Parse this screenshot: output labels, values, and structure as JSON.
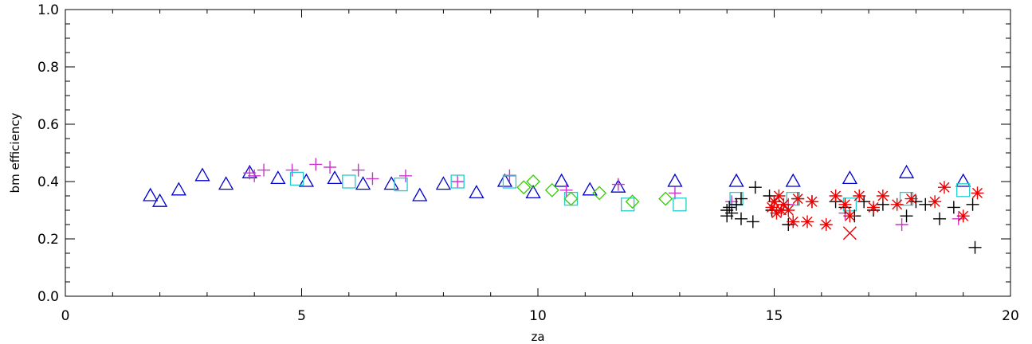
{
  "chart_data": {
    "type": "scatter",
    "title": "",
    "xlabel": "za",
    "ylabel": "bm efficiency",
    "xlim": [
      0,
      20
    ],
    "ylim": [
      0.0,
      1.0
    ],
    "xticks": [
      0,
      5,
      10,
      15,
      20
    ],
    "xtick_labels": [
      "0",
      "5",
      "10",
      "15",
      "20"
    ],
    "yticks": [
      0.0,
      0.2,
      0.4,
      0.6,
      0.8,
      1.0
    ],
    "ytick_labels": [
      "0.0",
      "0.2",
      "0.4",
      "0.6",
      "0.8",
      "1.0"
    ],
    "grid": false,
    "legend": "none",
    "series": [
      {
        "marker": "triangle",
        "color": "#0000cc",
        "points": [
          [
            1.8,
            0.35
          ],
          [
            2.0,
            0.33
          ],
          [
            2.4,
            0.37
          ],
          [
            2.9,
            0.42
          ],
          [
            3.4,
            0.39
          ],
          [
            3.9,
            0.43
          ],
          [
            4.5,
            0.41
          ],
          [
            5.1,
            0.4
          ],
          [
            5.7,
            0.41
          ],
          [
            6.3,
            0.39
          ],
          [
            6.9,
            0.39
          ],
          [
            7.5,
            0.35
          ],
          [
            8.0,
            0.39
          ],
          [
            8.7,
            0.36
          ],
          [
            9.3,
            0.4
          ],
          [
            9.9,
            0.36
          ],
          [
            10.5,
            0.4
          ],
          [
            11.1,
            0.37
          ],
          [
            11.7,
            0.38
          ],
          [
            12.9,
            0.4
          ],
          [
            14.2,
            0.4
          ],
          [
            15.4,
            0.4
          ],
          [
            16.6,
            0.41
          ],
          [
            17.8,
            0.43
          ],
          [
            19.0,
            0.4
          ]
        ]
      },
      {
        "marker": "plus",
        "color": "#cc33cc",
        "points": [
          [
            3.9,
            0.43
          ],
          [
            4.0,
            0.42
          ],
          [
            4.2,
            0.44
          ],
          [
            4.8,
            0.44
          ],
          [
            5.3,
            0.46
          ],
          [
            5.6,
            0.45
          ],
          [
            6.2,
            0.44
          ],
          [
            6.5,
            0.41
          ],
          [
            7.2,
            0.42
          ],
          [
            8.3,
            0.4
          ],
          [
            9.4,
            0.42
          ],
          [
            10.6,
            0.37
          ],
          [
            11.7,
            0.39
          ],
          [
            12.9,
            0.36
          ],
          [
            14.1,
            0.33
          ],
          [
            15.3,
            0.32
          ],
          [
            16.5,
            0.29
          ],
          [
            17.7,
            0.25
          ],
          [
            18.9,
            0.27
          ]
        ]
      },
      {
        "marker": "square",
        "color": "#22cccc",
        "points": [
          [
            4.9,
            0.41
          ],
          [
            6.0,
            0.4
          ],
          [
            7.1,
            0.39
          ],
          [
            8.3,
            0.4
          ],
          [
            9.4,
            0.4
          ],
          [
            10.7,
            0.34
          ],
          [
            11.9,
            0.32
          ],
          [
            13.0,
            0.32
          ],
          [
            14.2,
            0.34
          ],
          [
            15.4,
            0.34
          ],
          [
            16.6,
            0.32
          ],
          [
            17.8,
            0.34
          ],
          [
            19.0,
            0.37
          ]
        ]
      },
      {
        "marker": "diamond",
        "color": "#33cc00",
        "points": [
          [
            9.7,
            0.38
          ],
          [
            9.9,
            0.4
          ],
          [
            10.3,
            0.37
          ],
          [
            10.7,
            0.34
          ],
          [
            11.3,
            0.36
          ],
          [
            12.0,
            0.33
          ],
          [
            12.7,
            0.34
          ]
        ]
      },
      {
        "marker": "plus",
        "color": "#000000",
        "points": [
          [
            14.0,
            0.3
          ],
          [
            14.0,
            0.28
          ],
          [
            14.05,
            0.31
          ],
          [
            14.1,
            0.29
          ],
          [
            14.2,
            0.32
          ],
          [
            14.3,
            0.27
          ],
          [
            14.3,
            0.34
          ],
          [
            14.55,
            0.26
          ],
          [
            14.6,
            0.38
          ],
          [
            14.9,
            0.35
          ],
          [
            14.95,
            0.3
          ],
          [
            15.0,
            0.33
          ],
          [
            15.3,
            0.25
          ],
          [
            15.5,
            0.34
          ],
          [
            15.8,
            0.33
          ],
          [
            16.3,
            0.33
          ],
          [
            16.5,
            0.31
          ],
          [
            16.7,
            0.28
          ],
          [
            16.9,
            0.33
          ],
          [
            17.1,
            0.3
          ],
          [
            17.3,
            0.32
          ],
          [
            17.8,
            0.28
          ],
          [
            18.0,
            0.33
          ],
          [
            18.2,
            0.32
          ],
          [
            18.5,
            0.27
          ],
          [
            18.8,
            0.31
          ],
          [
            19.2,
            0.32
          ],
          [
            19.25,
            0.17
          ]
        ]
      },
      {
        "marker": "asterisk",
        "color": "#ee0000",
        "points": [
          [
            14.95,
            0.31
          ],
          [
            15.0,
            0.33
          ],
          [
            15.05,
            0.29
          ],
          [
            15.1,
            0.35
          ],
          [
            15.15,
            0.3
          ],
          [
            15.2,
            0.32
          ],
          [
            15.3,
            0.3
          ],
          [
            15.4,
            0.26
          ],
          [
            15.5,
            0.34
          ],
          [
            15.7,
            0.26
          ],
          [
            15.8,
            0.33
          ],
          [
            16.1,
            0.25
          ],
          [
            16.3,
            0.35
          ],
          [
            16.5,
            0.32
          ],
          [
            16.6,
            0.28
          ],
          [
            16.8,
            0.35
          ],
          [
            17.1,
            0.31
          ],
          [
            17.3,
            0.35
          ],
          [
            17.6,
            0.32
          ],
          [
            17.9,
            0.34
          ],
          [
            18.4,
            0.33
          ],
          [
            18.6,
            0.38
          ],
          [
            19.0,
            0.28
          ],
          [
            19.3,
            0.36
          ]
        ]
      },
      {
        "marker": "cross",
        "color": "#ee0000",
        "points": [
          [
            16.6,
            0.22
          ]
        ]
      }
    ]
  }
}
